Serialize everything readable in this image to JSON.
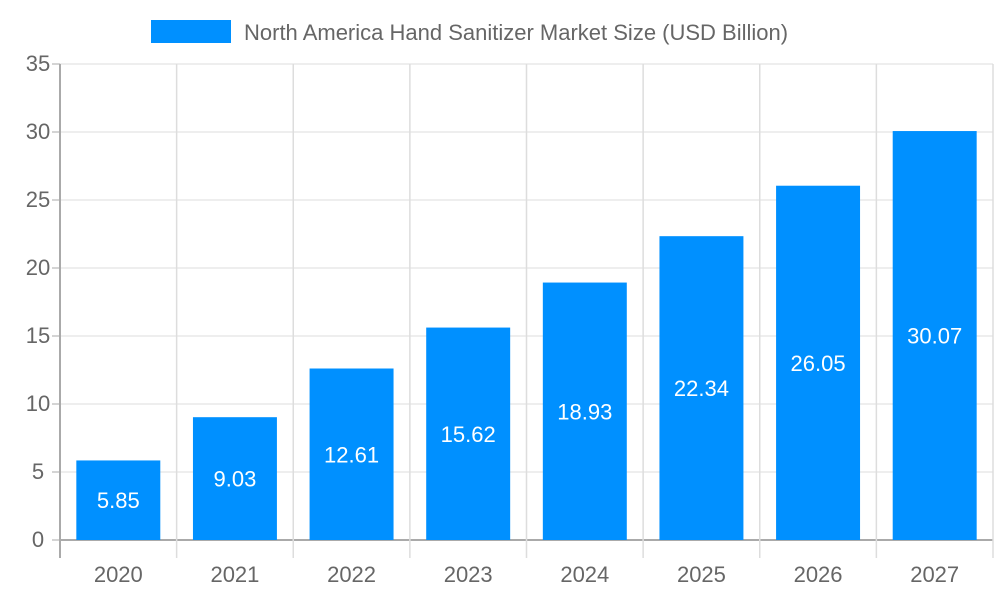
{
  "chart_data": {
    "type": "bar",
    "title": "",
    "xlabel": "",
    "ylabel": "",
    "categories": [
      "2020",
      "2021",
      "2022",
      "2023",
      "2024",
      "2025",
      "2026",
      "2027"
    ],
    "series": [
      {
        "name": "North America Hand Sanitizer Market Size (USD Billion)",
        "values": [
          5.85,
          9.03,
          12.61,
          15.62,
          18.93,
          22.34,
          26.05,
          30.07
        ],
        "color": "#0090FF"
      }
    ],
    "ylim": [
      0,
      35
    ],
    "yticks": [
      0,
      5,
      10,
      15,
      20,
      25,
      30,
      35
    ],
    "grid": true,
    "legend_position": "top",
    "data_labels": true
  }
}
